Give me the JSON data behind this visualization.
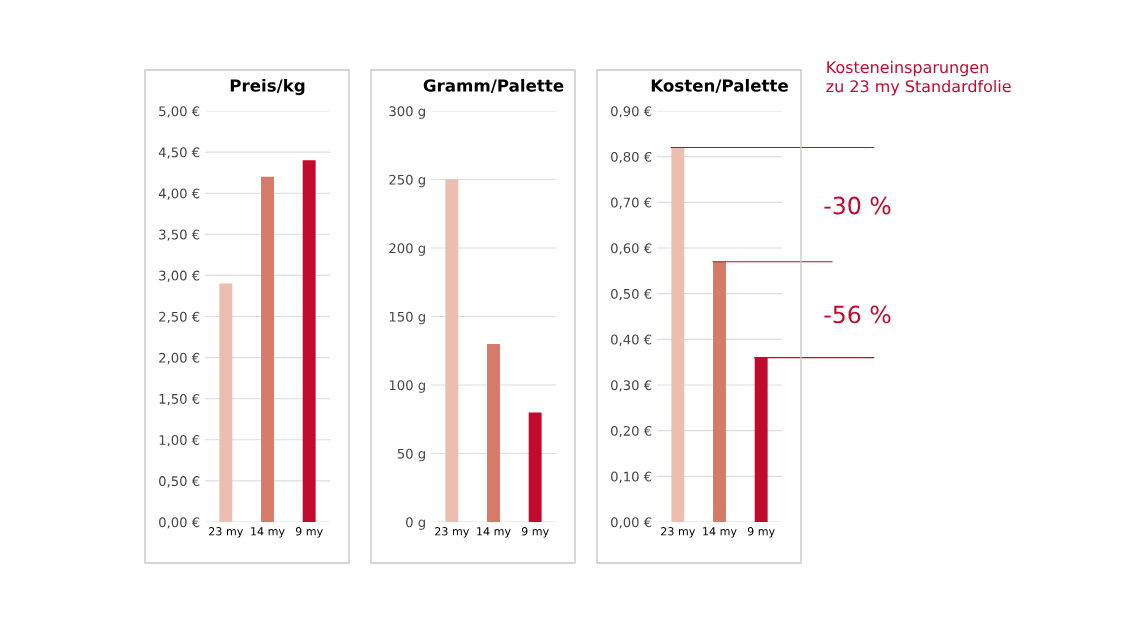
{
  "chart_data": [
    {
      "type": "bar",
      "title": "Preis/kg",
      "categories": [
        "23 my",
        "14 my",
        "9 my"
      ],
      "values": [
        2.9,
        4.2,
        4.4
      ],
      "colors": [
        "#ebbeb0",
        "#d67b69",
        "#c20a2f"
      ],
      "ylim": [
        0,
        5
      ],
      "yticks": [
        {
          "value": 0,
          "label": "0,00 €"
        },
        {
          "value": 0.5,
          "label": "0,50 €"
        },
        {
          "value": 1,
          "label": "1,00 €"
        },
        {
          "value": 1.5,
          "label": "1,50 €"
        },
        {
          "value": 2,
          "label": "2,00 €"
        },
        {
          "value": 2.5,
          "label": "2,50 €"
        },
        {
          "value": 3,
          "label": "3,00 €"
        },
        {
          "value": 3.5,
          "label": "3,50 €"
        },
        {
          "value": 4,
          "label": "4,00 €"
        },
        {
          "value": 4.5,
          "label": "4,50 €"
        },
        {
          "value": 5,
          "label": "5,00 €"
        }
      ],
      "grid": "y"
    },
    {
      "type": "bar",
      "title": "Gramm/Palette",
      "categories": [
        "23 my",
        "14 my",
        "9 my"
      ],
      "values": [
        250,
        130,
        80
      ],
      "colors": [
        "#ebbeb0",
        "#d67b69",
        "#c20a2f"
      ],
      "ylim": [
        0,
        300
      ],
      "yticks": [
        {
          "value": 0,
          "label": "0 g"
        },
        {
          "value": 50,
          "label": "50 g"
        },
        {
          "value": 100,
          "label": "100 g"
        },
        {
          "value": 150,
          "label": "150 g"
        },
        {
          "value": 200,
          "label": "200 g"
        },
        {
          "value": 250,
          "label": "250 g"
        },
        {
          "value": 300,
          "label": "300 g"
        }
      ],
      "grid": "y"
    },
    {
      "type": "bar",
      "title": "Kosten/Palette",
      "categories": [
        "23 my",
        "14 my",
        "9 my"
      ],
      "values": [
        0.82,
        0.57,
        0.36
      ],
      "colors": [
        "#ebbeb0",
        "#d67b69",
        "#c20a2f"
      ],
      "ylim": [
        0,
        0.9
      ],
      "yticks": [
        {
          "value": 0,
          "label": "0,00 €"
        },
        {
          "value": 0.1,
          "label": "0,10 €"
        },
        {
          "value": 0.2,
          "label": "0,20 €"
        },
        {
          "value": 0.3,
          "label": "0,30 €"
        },
        {
          "value": 0.4,
          "label": "0,40 €"
        },
        {
          "value": 0.5,
          "label": "0,50 €"
        },
        {
          "value": 0.6,
          "label": "0,60 €"
        },
        {
          "value": 0.7,
          "label": "0,70 €"
        },
        {
          "value": 0.8,
          "label": "0,80 €"
        },
        {
          "value": 0.9,
          "label": "0,90 €"
        }
      ],
      "grid": "y",
      "ref_lines": [
        {
          "axis": "y",
          "value": 0.82,
          "color": "#c20a2f"
        },
        {
          "axis": "y",
          "value": 0.57,
          "color": "#c20a2f"
        },
        {
          "axis": "y",
          "value": 0.36,
          "color": "#c20a2f"
        }
      ],
      "annotations": [
        "Kosteneinsparungen\nzu 23 my Standardfolie",
        "-30 %",
        "-56 %"
      ]
    }
  ]
}
